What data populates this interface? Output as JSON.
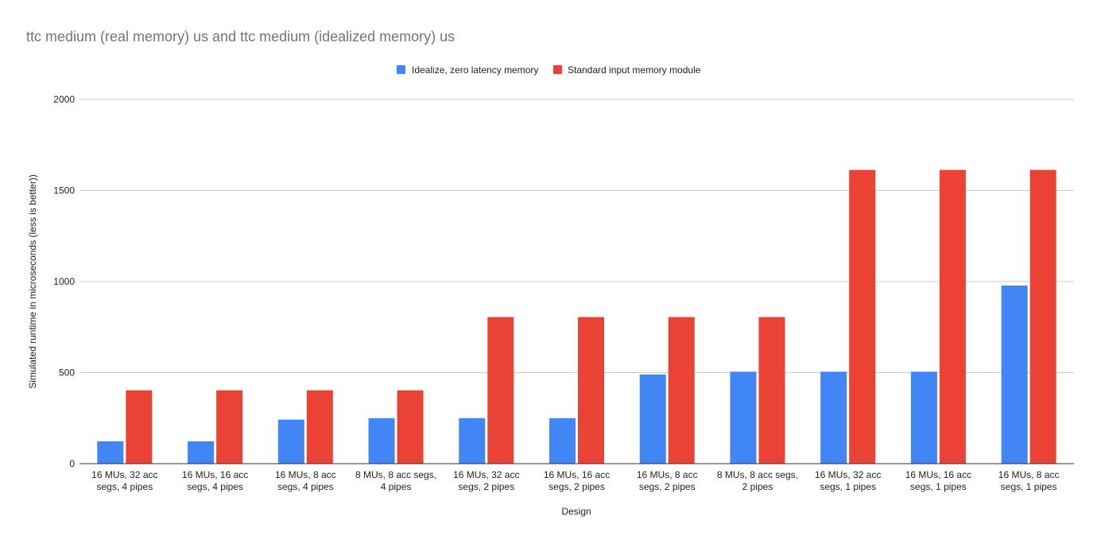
{
  "chart_data": {
    "type": "bar",
    "title": "ttc medium (real memory) us and ttc medium (idealized memory) us",
    "xlabel": "Design",
    "ylabel": "Simulated runtime in microseconds (less is better))",
    "ylim": [
      0,
      2000
    ],
    "yticks": [
      0,
      500,
      1000,
      1500,
      2000
    ],
    "grid": true,
    "legend_position": "top-center",
    "categories": [
      [
        "16 MUs, 32 acc",
        "segs, 4 pipes"
      ],
      [
        "16 MUs, 16 acc",
        "segs, 4 pipes"
      ],
      [
        "16 MUs, 8 acc",
        "segs, 4 pipes"
      ],
      [
        "8 MUs, 8 acc segs,",
        "4 pipes"
      ],
      [
        "16 MUs, 32 acc",
        "segs, 2 pipes"
      ],
      [
        "16 MUs, 16 acc",
        "segs, 2 pipes"
      ],
      [
        "16 MUs, 8 acc",
        "segs, 2 pipes"
      ],
      [
        "8 MUs, 8 acc segs,",
        "2 pipes"
      ],
      [
        "16 MUs, 32 acc",
        "segs, 1 pipes"
      ],
      [
        "16 MUs, 16 acc",
        "segs, 1 pipes"
      ],
      [
        "16 MUs, 8 acc",
        "segs, 1 pipes"
      ]
    ],
    "series": [
      {
        "name": "Idealize, zero latency memory",
        "color": "#4285f4",
        "values": [
          123,
          123,
          242,
          250,
          250,
          250,
          490,
          505,
          505,
          505,
          978
        ]
      },
      {
        "name": "Standard input memory module",
        "color": "#ea4335",
        "values": [
          403,
          403,
          403,
          403,
          805,
          805,
          805,
          805,
          1613,
          1613,
          1613
        ]
      }
    ]
  }
}
